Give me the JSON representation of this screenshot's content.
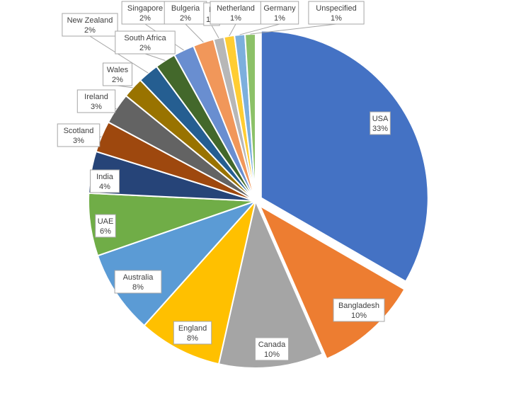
{
  "chart_data": {
    "type": "pie",
    "title": "",
    "slices": [
      {
        "label": "USA",
        "percent_label": "33%",
        "value": 33,
        "color": "#4472C4",
        "exploded": true
      },
      {
        "label": "Bangladesh",
        "percent_label": "10%",
        "value": 10,
        "color": "#ED7D31",
        "exploded": true
      },
      {
        "label": "Canada",
        "percent_label": "10%",
        "value": 10,
        "color": "#A5A5A5"
      },
      {
        "label": "England",
        "percent_label": "8%",
        "value": 8,
        "color": "#FFC000"
      },
      {
        "label": "Australia",
        "percent_label": "8%",
        "value": 8,
        "color": "#5B9BD5"
      },
      {
        "label": "UAE",
        "percent_label": "6%",
        "value": 6,
        "color": "#70AD47"
      },
      {
        "label": "India",
        "percent_label": "4%",
        "value": 4,
        "color": "#264478"
      },
      {
        "label": "Scotland",
        "percent_label": "3%",
        "value": 3,
        "color": "#9E480E"
      },
      {
        "label": "Ireland",
        "percent_label": "3%",
        "value": 3,
        "color": "#636363"
      },
      {
        "label": "Wales",
        "percent_label": "2%",
        "value": 2,
        "color": "#997300"
      },
      {
        "label": "New Zealand",
        "percent_label": "2%",
        "value": 2,
        "color": "#255E91"
      },
      {
        "label": "South Africa",
        "percent_label": "2%",
        "value": 2,
        "color": "#43682B"
      },
      {
        "label": "Singapore",
        "percent_label": "2%",
        "value": 2,
        "color": "#698ED0"
      },
      {
        "label": "Bulgeria",
        "percent_label": "2%",
        "value": 2,
        "color": "#F1975A"
      },
      {
        "label": "N",
        "percent_label": "1%",
        "value": 1,
        "color": "#B7B7B7"
      },
      {
        "label": "Netherland",
        "percent_label": "1%",
        "value": 1,
        "color": "#FFCD33"
      },
      {
        "label": "Germany",
        "percent_label": "1%",
        "value": 1,
        "color": "#7CAFDD"
      },
      {
        "label": "Unspecified",
        "percent_label": "1%",
        "value": 1,
        "color": "#8CC168"
      }
    ],
    "legend": "none",
    "data_labels": "callouts"
  }
}
